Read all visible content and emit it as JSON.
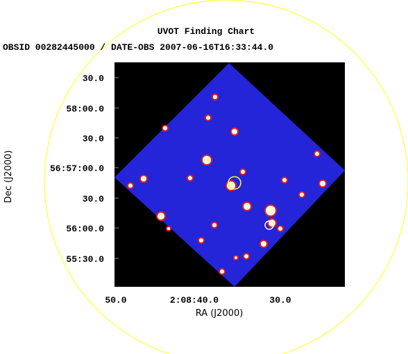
{
  "header": {
    "title": "UVOT Finding Chart",
    "subtitle": "OBSID 00282445000 / DATE-OBS 2007-06-16T16:33:44.0"
  },
  "x_axis": {
    "label": "RA (J2000)",
    "ticks": [
      "50.0",
      "2:08:40.0",
      "30.0"
    ]
  },
  "y_axis": {
    "label": "Dec (J2000)",
    "ticks": [
      "30.0",
      "58:00.0",
      "30.0",
      "56:57:00.0",
      "30.0",
      "56:00.0",
      "55:30.0"
    ]
  }
}
